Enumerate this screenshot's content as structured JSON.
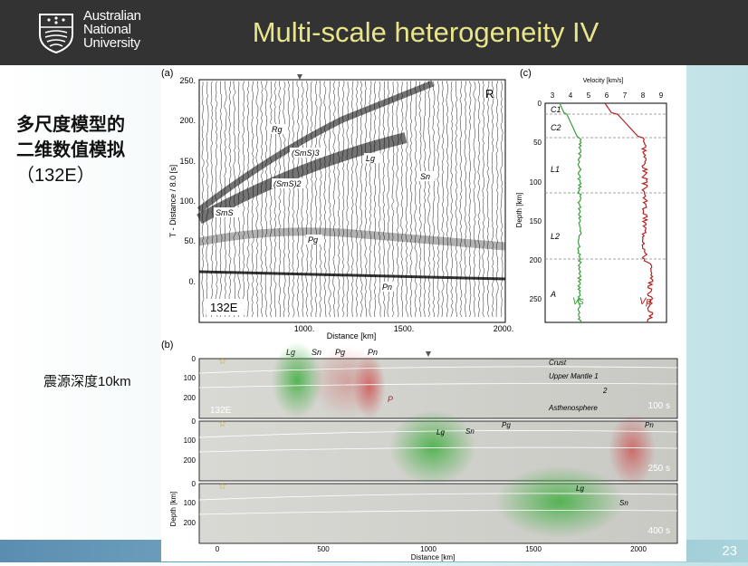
{
  "header": {
    "logo_lines": [
      "Australian",
      "National",
      "University"
    ],
    "title": "Multi-scale heterogeneity IV"
  },
  "left_panel": {
    "line1": "多尺度模型的",
    "line2": "二维数值模拟",
    "line3": "（132E）",
    "depth_note": "震源深度10km"
  },
  "page_number": "23",
  "colors": {
    "header": "#333333",
    "title": "#e9e58a",
    "green": "#2e9e2e",
    "red": "#b22222"
  },
  "figure": {
    "panel_a": {
      "label": "(a)",
      "ylabel": "T - Distance / 8.0 [s]",
      "xlabel": "Distance [km]",
      "yticks": [
        "250.",
        "200.",
        "150.",
        "100.",
        "50.",
        "0."
      ],
      "xticks": [
        "1000.",
        "1500.",
        "2000."
      ],
      "component": "R",
      "model": "132E",
      "phases": [
        "Rg",
        "(SmS)3",
        "Lg",
        "(SmS)2",
        "Sn",
        "SmS",
        "Pg",
        "Pn"
      ]
    },
    "panel_c": {
      "label": "(c)",
      "title": "Velocity [km/s]",
      "xticks": [
        "3",
        "4",
        "5",
        "6",
        "7",
        "8",
        "9"
      ],
      "ylabel": "Depth [km]",
      "yticks": [
        "0",
        "50",
        "100",
        "150",
        "200",
        "250"
      ],
      "layers": [
        "C1",
        "C2",
        "L1",
        "L2",
        "A"
      ],
      "curve_labels": [
        "Vs",
        "Vp"
      ]
    },
    "panel_b": {
      "label": "(b)",
      "ylabel": "Depth [km]",
      "xlabel": "Distance [km]",
      "xticks": [
        "0",
        "500",
        "1000",
        "1500",
        "2000"
      ],
      "yticks": [
        "0",
        "100",
        "200"
      ],
      "snapshots": [
        {
          "time": "100 s",
          "phases": [
            "Lg",
            "Sn",
            "Pg",
            "Pn",
            "P"
          ],
          "layers": [
            "Crust",
            "Upper Mantle 1",
            "2",
            "Asthenosphere"
          ],
          "model": "132E"
        },
        {
          "time": "250 s",
          "phases": [
            "Lg",
            "Sn",
            "Pg",
            "Pn"
          ]
        },
        {
          "time": "400 s",
          "phases": [
            "Lg",
            "Sn"
          ]
        }
      ]
    }
  }
}
